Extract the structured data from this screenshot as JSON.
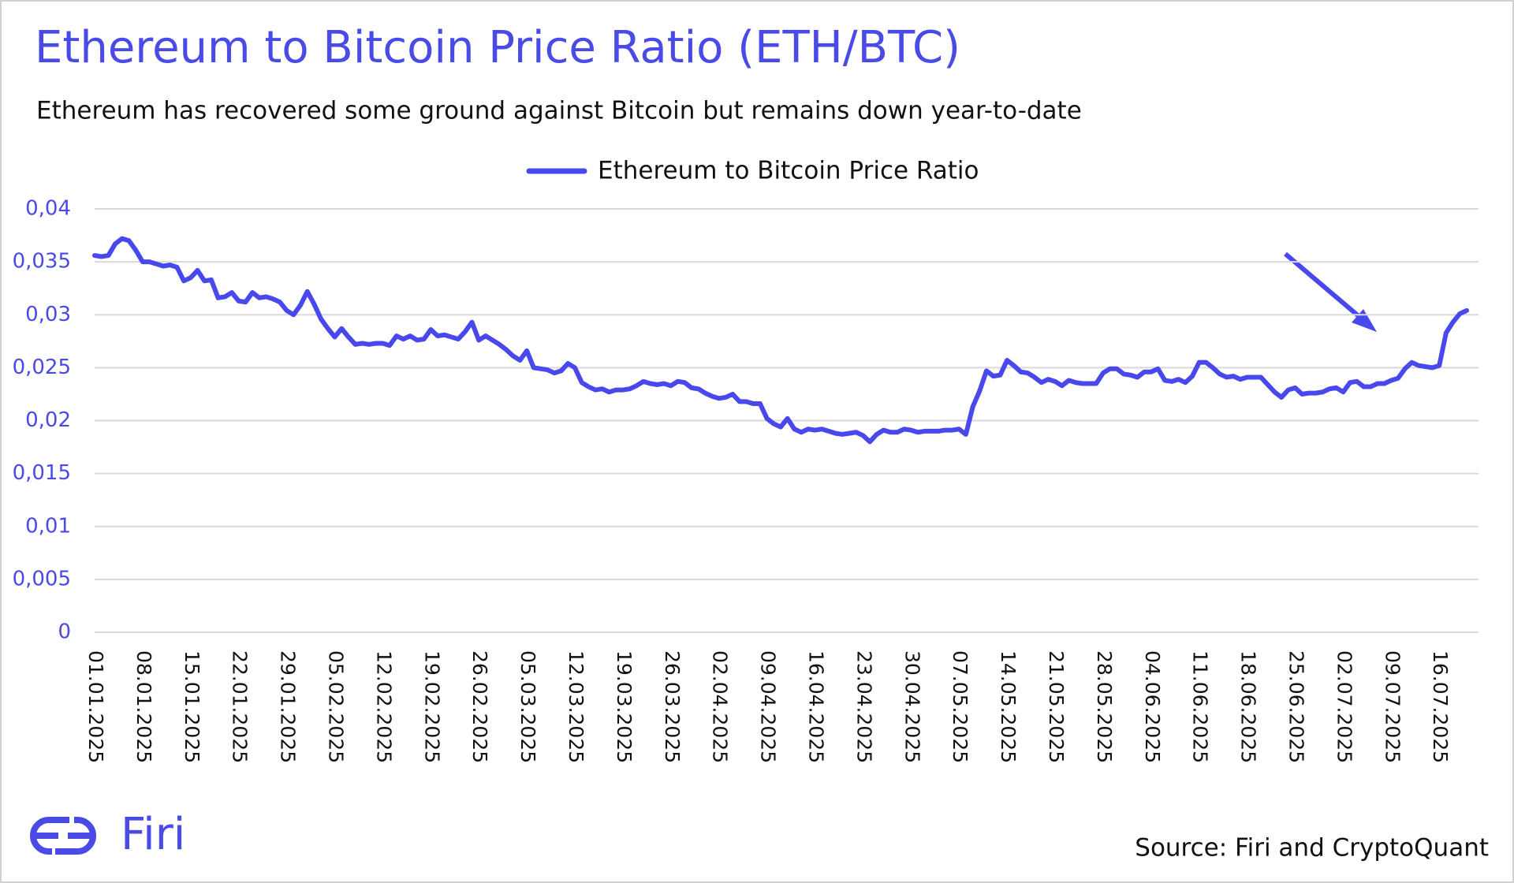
{
  "chart_data": {
    "type": "line",
    "title": "Ethereum to Bitcoin Price Ratio (ETH/BTC)",
    "subtitle": "Ethereum has recovered some ground against Bitcoin but remains down year-to-date",
    "categories": [
      "01.01.2025",
      null,
      null,
      null,
      null,
      null,
      null,
      "08.01.2025",
      null,
      null,
      null,
      null,
      null,
      null,
      "15.01.2025",
      null,
      null,
      null,
      null,
      null,
      null,
      "22.01.2025",
      null,
      null,
      null,
      null,
      null,
      null,
      "29.01.2025",
      null,
      null,
      null,
      null,
      null,
      null,
      "05.02.2025",
      null,
      null,
      null,
      null,
      null,
      null,
      "12.02.2025",
      null,
      null,
      null,
      null,
      null,
      null,
      "19.02.2025",
      null,
      null,
      null,
      null,
      null,
      null,
      "26.02.2025",
      null,
      null,
      null,
      null,
      null,
      null,
      "05.03.2025",
      null,
      null,
      null,
      null,
      null,
      null,
      "12.03.2025",
      null,
      null,
      null,
      null,
      null,
      null,
      "19.03.2025",
      null,
      null,
      null,
      null,
      null,
      null,
      "26.03.2025",
      null,
      null,
      null,
      null,
      null,
      null,
      "02.04.2025",
      null,
      null,
      null,
      null,
      null,
      null,
      "09.04.2025",
      null,
      null,
      null,
      null,
      null,
      null,
      "16.04.2025",
      null,
      null,
      null,
      null,
      null,
      null,
      "23.04.2025",
      null,
      null,
      null,
      null,
      null,
      null,
      "30.04.2025",
      null,
      null,
      null,
      null,
      null,
      null,
      "07.05.2025",
      null,
      null,
      null,
      null,
      null,
      null,
      "14.05.2025",
      null,
      null,
      null,
      null,
      null,
      null,
      "21.05.2025",
      null,
      null,
      null,
      null,
      null,
      null,
      "28.05.2025",
      null,
      null,
      null,
      null,
      null,
      null,
      "04.06.2025",
      null,
      null,
      null,
      null,
      null,
      null,
      "11.06.2025",
      null,
      null,
      null,
      null,
      null,
      null,
      "18.06.2025",
      null,
      null,
      null,
      null,
      null,
      null,
      "25.06.2025",
      null,
      null,
      null,
      null,
      null,
      null,
      "02.07.2025",
      null,
      null,
      null,
      null,
      null,
      null,
      "09.07.2025",
      null,
      null,
      null,
      null,
      null,
      null,
      "16.07.2025",
      null,
      null,
      null,
      null
    ],
    "series": [
      {
        "name": "Ethereum to Bitcoin Price Ratio",
        "color": "#4848ec",
        "values": [
          0.0356,
          0.0355,
          0.0356,
          0.0367,
          0.0372,
          0.037,
          0.0361,
          0.035,
          0.035,
          0.0348,
          0.0346,
          0.0347,
          0.0345,
          0.0332,
          0.0335,
          0.0342,
          0.0332,
          0.0333,
          0.0316,
          0.0317,
          0.0321,
          0.0313,
          0.0312,
          0.0321,
          0.0316,
          0.0317,
          0.0315,
          0.0312,
          0.0304,
          0.03,
          0.0309,
          0.0322,
          0.031,
          0.0296,
          0.0287,
          0.0279,
          0.0287,
          0.0279,
          0.0272,
          0.0273,
          0.0272,
          0.0273,
          0.0273,
          0.0271,
          0.028,
          0.0277,
          0.028,
          0.0276,
          0.0277,
          0.0286,
          0.028,
          0.0281,
          0.0279,
          0.0277,
          0.0284,
          0.0293,
          0.0276,
          0.028,
          0.0276,
          0.0272,
          0.0267,
          0.0261,
          0.0257,
          0.0266,
          0.025,
          0.0249,
          0.0248,
          0.0245,
          0.0247,
          0.0254,
          0.025,
          0.0236,
          0.0232,
          0.0229,
          0.023,
          0.0227,
          0.0229,
          0.0229,
          0.023,
          0.0233,
          0.0237,
          0.0235,
          0.0234,
          0.0235,
          0.0233,
          0.0237,
          0.0236,
          0.0231,
          0.023,
          0.0226,
          0.0223,
          0.0221,
          0.0222,
          0.0225,
          0.0218,
          0.0218,
          0.0216,
          0.0216,
          0.0202,
          0.0197,
          0.0194,
          0.0202,
          0.0192,
          0.0189,
          0.0192,
          0.0191,
          0.0192,
          0.019,
          0.0188,
          0.0187,
          0.0188,
          0.0189,
          0.0186,
          0.018,
          0.0187,
          0.0191,
          0.0189,
          0.0189,
          0.0192,
          0.0191,
          0.0189,
          0.019,
          0.019,
          0.019,
          0.0191,
          0.0191,
          0.0192,
          0.0187,
          0.0213,
          0.0228,
          0.0247,
          0.0242,
          0.0243,
          0.0257,
          0.0252,
          0.0246,
          0.0245,
          0.0241,
          0.0236,
          0.0239,
          0.0237,
          0.0233,
          0.0238,
          0.0236,
          0.0235,
          0.0235,
          0.0235,
          0.0245,
          0.0249,
          0.0249,
          0.0244,
          0.0243,
          0.0241,
          0.0246,
          0.0246,
          0.0249,
          0.0238,
          0.0237,
          0.0239,
          0.0236,
          0.0242,
          0.0255,
          0.0255,
          0.025,
          0.0244,
          0.0241,
          0.0242,
          0.0239,
          0.0241,
          0.0241,
          0.0241,
          0.0234,
          0.0227,
          0.0222,
          0.0229,
          0.0231,
          0.0225,
          0.0226,
          0.0226,
          0.0227,
          0.023,
          0.0231,
          0.0227,
          0.0236,
          0.0237,
          0.0232,
          0.0232,
          0.0235,
          0.0235,
          0.0238,
          0.024,
          0.0249,
          0.0255,
          0.0252,
          0.0251,
          0.025,
          0.0252,
          0.0283,
          0.0293,
          0.0301,
          0.0304
        ]
      }
    ],
    "ylim": [
      0,
      0.04
    ],
    "yticks": [
      0,
      {
        "value": 0.005,
        "label": "0,005"
      },
      {
        "value": 0.01,
        "label": "0,01"
      },
      {
        "value": 0.015,
        "label": "0,015"
      },
      {
        "value": 0.02,
        "label": "0,02"
      },
      {
        "value": 0.025,
        "label": "0,025"
      },
      {
        "value": 0.03,
        "label": "0,03"
      },
      {
        "value": 0.035,
        "label": "0,035"
      },
      {
        "value": 0.04,
        "label": "0,04"
      }
    ],
    "grid": true,
    "legend": "top"
  },
  "logo": "Firi",
  "source": "Source: Firi and CryptoQuant"
}
